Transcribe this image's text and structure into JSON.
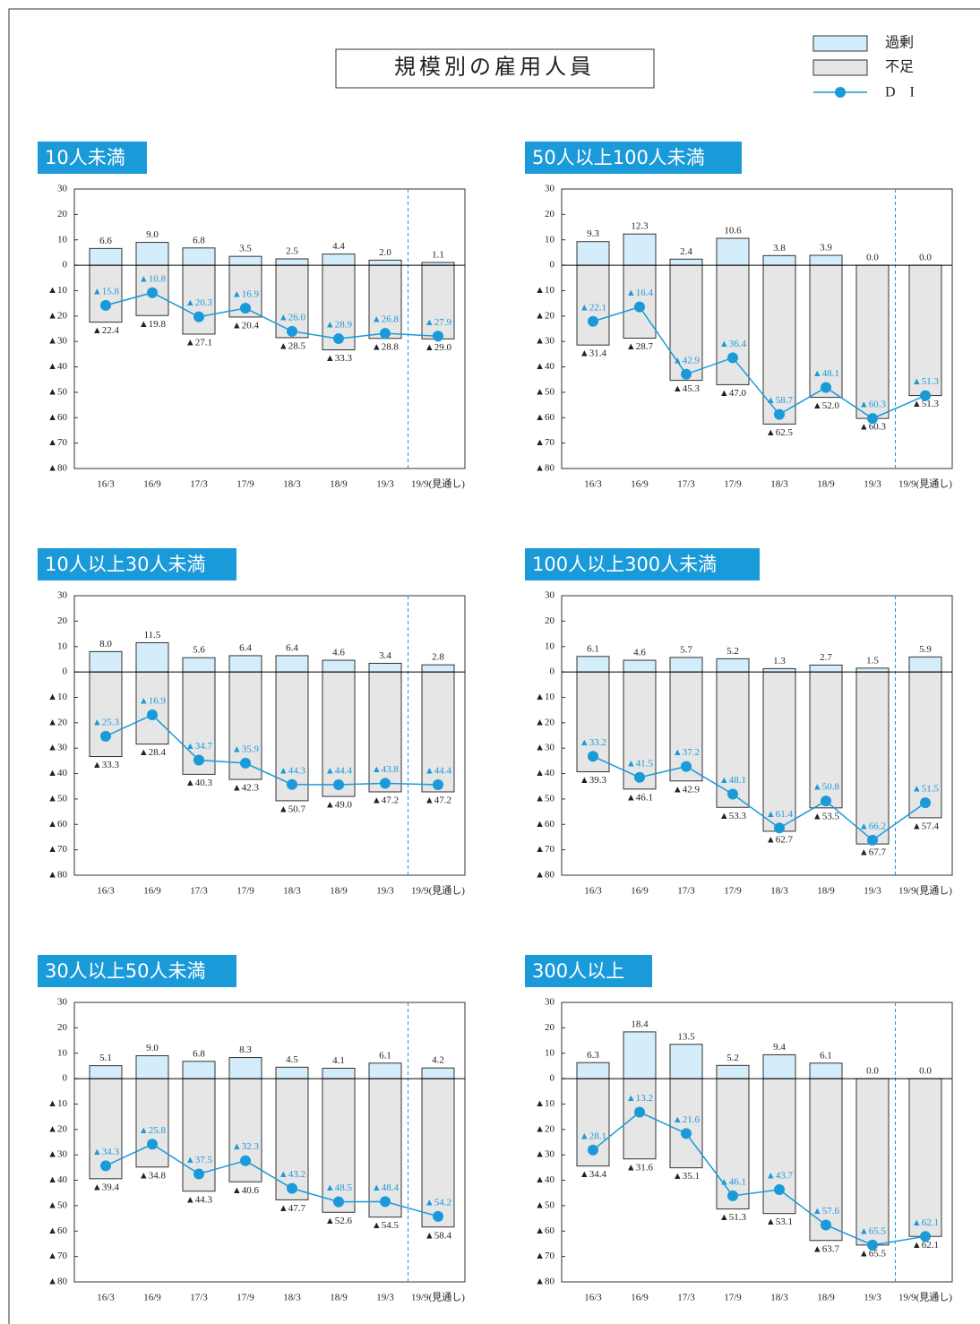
{
  "title": "規模別の雇用人員",
  "legend": [
    {
      "name": "過剰",
      "color": "#d4edfa"
    },
    {
      "name": "不足",
      "color": "#e6e6e6"
    },
    {
      "name": "D I",
      "color": "#1a9ad9"
    }
  ],
  "chart_data": [
    {
      "type": "bar",
      "title": "10人未満",
      "categories": [
        "16/3",
        "16/9",
        "17/3",
        "17/9",
        "18/3",
        "18/9",
        "19/3",
        "19/9(見通し)"
      ],
      "ylim": [
        -80,
        30
      ],
      "yticks": [
        30,
        20,
        10,
        0,
        {
          "value": -10,
          "label": "▲10"
        },
        {
          "value": -20,
          "label": "▲20"
        },
        {
          "value": -30,
          "label": "▲30"
        },
        {
          "value": -40,
          "label": "▲40"
        },
        {
          "value": -50,
          "label": "▲50"
        },
        {
          "value": -60,
          "label": "▲60"
        },
        {
          "value": -70,
          "label": "▲70"
        },
        {
          "value": -80,
          "label": "▲80"
        }
      ],
      "series": [
        {
          "values": [
            6.6,
            9.0,
            6.8,
            3.5,
            2.5,
            4.4,
            2.0,
            1.1
          ],
          "value_labels": [
            "6.6",
            "9.0",
            "6.8",
            "3.5",
            "2.5",
            "4.4",
            "2.0",
            "1.1"
          ]
        },
        {
          "values": [
            -22.4,
            -19.8,
            -27.1,
            -20.4,
            -28.5,
            -33.3,
            -28.8,
            -29.0
          ],
          "value_labels": [
            "▲22.4",
            "▲19.8",
            "▲27.1",
            "▲20.4",
            "▲28.5",
            "▲33.3",
            "▲28.8",
            "▲29.0"
          ]
        },
        {
          "values": [
            -15.8,
            -10.8,
            -20.3,
            -16.9,
            -26.0,
            -28.9,
            -26.8,
            -27.9
          ],
          "value_labels": [
            "▲15.8",
            "▲10.8",
            "▲20.3",
            "▲16.9",
            "▲26.0",
            "▲28.9",
            "▲26.8",
            "▲27.9"
          ]
        }
      ]
    },
    {
      "type": "bar",
      "title": "50人以上100人未満",
      "categories": [
        "16/3",
        "16/9",
        "17/3",
        "17/9",
        "18/3",
        "18/9",
        "19/3",
        "19/9(見通し)"
      ],
      "ylim": [
        -80,
        30
      ],
      "yticks": [
        30,
        20,
        10,
        0,
        {
          "value": -10,
          "label": "▲10"
        },
        {
          "value": -20,
          "label": "▲20"
        },
        {
          "value": -30,
          "label": "▲30"
        },
        {
          "value": -40,
          "label": "▲40"
        },
        {
          "value": -50,
          "label": "▲50"
        },
        {
          "value": -60,
          "label": "▲60"
        },
        {
          "value": -70,
          "label": "▲70"
        },
        {
          "value": -80,
          "label": "▲80"
        }
      ],
      "series": [
        {
          "values": [
            9.3,
            12.3,
            2.4,
            10.6,
            3.8,
            3.9,
            0.0,
            0.0
          ],
          "value_labels": [
            "9.3",
            "12.3",
            "2.4",
            "10.6",
            "3.8",
            "3.9",
            "0.0",
            "0.0"
          ]
        },
        {
          "values": [
            -31.4,
            -28.7,
            -45.3,
            -47.0,
            -62.5,
            -52.0,
            -60.3,
            -51.3
          ],
          "value_labels": [
            "▲31.4",
            "▲28.7",
            "▲45.3",
            "▲47.0",
            "▲62.5",
            "▲52.0",
            "▲60.3",
            "▲51.3"
          ]
        },
        {
          "values": [
            -22.1,
            -16.4,
            -42.9,
            -36.4,
            -58.7,
            -48.1,
            -60.3,
            -51.3
          ],
          "value_labels": [
            "▲22.1",
            "▲16.4",
            "▲42.9",
            "▲36.4",
            "▲58.7",
            "▲48.1",
            "▲60.3",
            "▲51.3"
          ]
        }
      ]
    },
    {
      "type": "bar",
      "title": "10人以上30人未満",
      "categories": [
        "16/3",
        "16/9",
        "17/3",
        "17/9",
        "18/3",
        "18/9",
        "19/3",
        "19/9(見通し)"
      ],
      "ylim": [
        -80,
        30
      ],
      "yticks": [
        30,
        20,
        10,
        0,
        {
          "value": -10,
          "label": "▲10"
        },
        {
          "value": -20,
          "label": "▲20"
        },
        {
          "value": -30,
          "label": "▲30"
        },
        {
          "value": -40,
          "label": "▲40"
        },
        {
          "value": -50,
          "label": "▲50"
        },
        {
          "value": -60,
          "label": "▲60"
        },
        {
          "value": -70,
          "label": "▲70"
        },
        {
          "value": -80,
          "label": "▲80"
        }
      ],
      "series": [
        {
          "values": [
            8.0,
            11.5,
            5.6,
            6.4,
            6.4,
            4.6,
            3.4,
            2.8
          ],
          "value_labels": [
            "8.0",
            "11.5",
            "5.6",
            "6.4",
            "6.4",
            "4.6",
            "3.4",
            "2.8"
          ]
        },
        {
          "values": [
            -33.3,
            -28.4,
            -40.3,
            -42.3,
            -50.7,
            -49.0,
            -47.2,
            -47.2
          ],
          "value_labels": [
            "▲33.3",
            "▲28.4",
            "▲40.3",
            "▲42.3",
            "▲50.7",
            "▲49.0",
            "▲47.2",
            "▲47.2"
          ]
        },
        {
          "values": [
            -25.3,
            -16.9,
            -34.7,
            -35.9,
            -44.3,
            -44.4,
            -43.8,
            -44.4
          ],
          "value_labels": [
            "▲25.3",
            "▲16.9",
            "▲34.7",
            "▲35.9",
            "▲44.3",
            "▲44.4",
            "▲43.8",
            "▲44.4"
          ]
        }
      ]
    },
    {
      "type": "bar",
      "title": "100人以上300人未満",
      "categories": [
        "16/3",
        "16/9",
        "17/3",
        "17/9",
        "18/3",
        "18/9",
        "19/3",
        "19/9(見通し)"
      ],
      "ylim": [
        -80,
        30
      ],
      "yticks": [
        30,
        20,
        10,
        0,
        {
          "value": -10,
          "label": "▲10"
        },
        {
          "value": -20,
          "label": "▲20"
        },
        {
          "value": -30,
          "label": "▲30"
        },
        {
          "value": -40,
          "label": "▲40"
        },
        {
          "value": -50,
          "label": "▲50"
        },
        {
          "value": -60,
          "label": "▲60"
        },
        {
          "value": -70,
          "label": "▲70"
        },
        {
          "value": -80,
          "label": "▲80"
        }
      ],
      "series": [
        {
          "values": [
            6.1,
            4.6,
            5.7,
            5.2,
            1.3,
            2.7,
            1.5,
            5.9
          ],
          "value_labels": [
            "6.1",
            "4.6",
            "5.7",
            "5.2",
            "1.3",
            "2.7",
            "1.5",
            "5.9"
          ]
        },
        {
          "values": [
            -39.3,
            -46.1,
            -42.9,
            -53.3,
            -62.7,
            -53.5,
            -67.7,
            -57.4
          ],
          "value_labels": [
            "▲39.3",
            "▲46.1",
            "▲42.9",
            "▲53.3",
            "▲62.7",
            "▲53.5",
            "▲67.7",
            "▲57.4"
          ]
        },
        {
          "values": [
            -33.2,
            -41.5,
            -37.2,
            -48.1,
            -61.4,
            -50.8,
            -66.2,
            -51.5
          ],
          "value_labels": [
            "▲33.2",
            "▲41.5",
            "▲37.2",
            "▲48.1",
            "▲61.4",
            "▲50.8",
            "▲66.2",
            "▲51.5"
          ]
        }
      ]
    },
    {
      "type": "bar",
      "title": "30人以上50人未満",
      "categories": [
        "16/3",
        "16/9",
        "17/3",
        "17/9",
        "18/3",
        "18/9",
        "19/3",
        "19/9(見通し)"
      ],
      "ylim": [
        -80,
        30
      ],
      "yticks": [
        30,
        20,
        10,
        0,
        {
          "value": -10,
          "label": "▲10"
        },
        {
          "value": -20,
          "label": "▲20"
        },
        {
          "value": -30,
          "label": "▲30"
        },
        {
          "value": -40,
          "label": "▲40"
        },
        {
          "value": -50,
          "label": "▲50"
        },
        {
          "value": -60,
          "label": "▲60"
        },
        {
          "value": -70,
          "label": "▲70"
        },
        {
          "value": -80,
          "label": "▲80"
        }
      ],
      "series": [
        {
          "values": [
            5.1,
            9.0,
            6.8,
            8.3,
            4.5,
            4.1,
            6.1,
            4.2
          ],
          "value_labels": [
            "5.1",
            "9.0",
            "6.8",
            "8.3",
            "4.5",
            "4.1",
            "6.1",
            "4.2"
          ]
        },
        {
          "values": [
            -39.4,
            -34.8,
            -44.3,
            -40.6,
            -47.7,
            -52.6,
            -54.5,
            -58.4
          ],
          "value_labels": [
            "▲39.4",
            "▲34.8",
            "▲44.3",
            "▲40.6",
            "▲47.7",
            "▲52.6",
            "▲54.5",
            "▲58.4"
          ]
        },
        {
          "values": [
            -34.3,
            -25.8,
            -37.5,
            -32.3,
            -43.2,
            -48.5,
            -48.4,
            -54.2
          ],
          "value_labels": [
            "▲34.3",
            "▲25.8",
            "▲37.5",
            "▲32.3",
            "▲43.2",
            "▲48.5",
            "▲48.4",
            "▲54.2"
          ]
        }
      ]
    },
    {
      "type": "bar",
      "title": "300人以上",
      "categories": [
        "16/3",
        "16/9",
        "17/3",
        "17/9",
        "18/3",
        "18/9",
        "19/3",
        "19/9(見通し)"
      ],
      "ylim": [
        -80,
        30
      ],
      "yticks": [
        30,
        20,
        10,
        0,
        {
          "value": -10,
          "label": "▲10"
        },
        {
          "value": -20,
          "label": "▲20"
        },
        {
          "value": -30,
          "label": "▲30"
        },
        {
          "value": -40,
          "label": "▲40"
        },
        {
          "value": -50,
          "label": "▲50"
        },
        {
          "value": -60,
          "label": "▲60"
        },
        {
          "value": -70,
          "label": "▲70"
        },
        {
          "value": -80,
          "label": "▲80"
        }
      ],
      "series": [
        {
          "values": [
            6.3,
            18.4,
            13.5,
            5.2,
            9.4,
            6.1,
            0.0,
            0.0
          ],
          "value_labels": [
            "6.3",
            "18.4",
            "13.5",
            "5.2",
            "9.4",
            "6.1",
            "0.0",
            "0.0"
          ]
        },
        {
          "values": [
            -34.4,
            -31.6,
            -35.1,
            -51.3,
            -53.1,
            -63.7,
            -65.5,
            -62.1
          ],
          "value_labels": [
            "▲34.4",
            "▲31.6",
            "▲35.1",
            "▲51.3",
            "▲53.1",
            "▲63.7",
            "▲65.5",
            "▲62.1"
          ]
        },
        {
          "values": [
            -28.1,
            -13.2,
            -21.6,
            -46.1,
            -43.7,
            -57.6,
            -65.5,
            -62.1
          ],
          "value_labels": [
            "▲28.1",
            "▲13.2",
            "▲21.6",
            "▲46.1",
            "▲43.7",
            "▲57.6",
            "▲65.5",
            "▲62.1"
          ]
        }
      ]
    }
  ]
}
